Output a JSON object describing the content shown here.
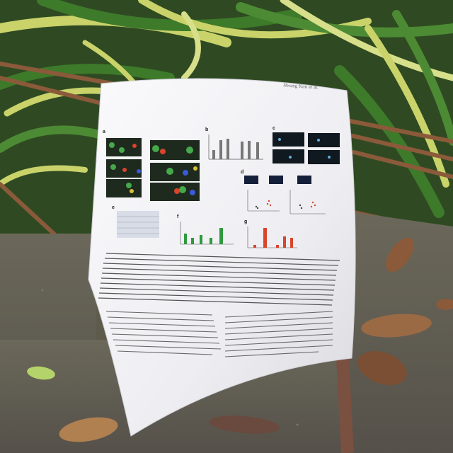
{
  "scene": {
    "description_items": [
      "paper-sheet",
      "plant-leaves",
      "concrete-ground",
      "dry-leaves"
    ]
  },
  "paper": {
    "header": "Hwang Kim et al.",
    "panel_labels": [
      "a",
      "b",
      "c",
      "d",
      "e",
      "f",
      "g"
    ]
  },
  "colors": {
    "paper": "#f4f4f6",
    "leaf_green": "#3d7a2a",
    "leaf_yellow": "#c9d36a",
    "ground": "#5e5a4c",
    "dry_leaf": "#8a5a3a",
    "chart_red": "#d9442b",
    "chart_green": "#2e9a3e"
  }
}
